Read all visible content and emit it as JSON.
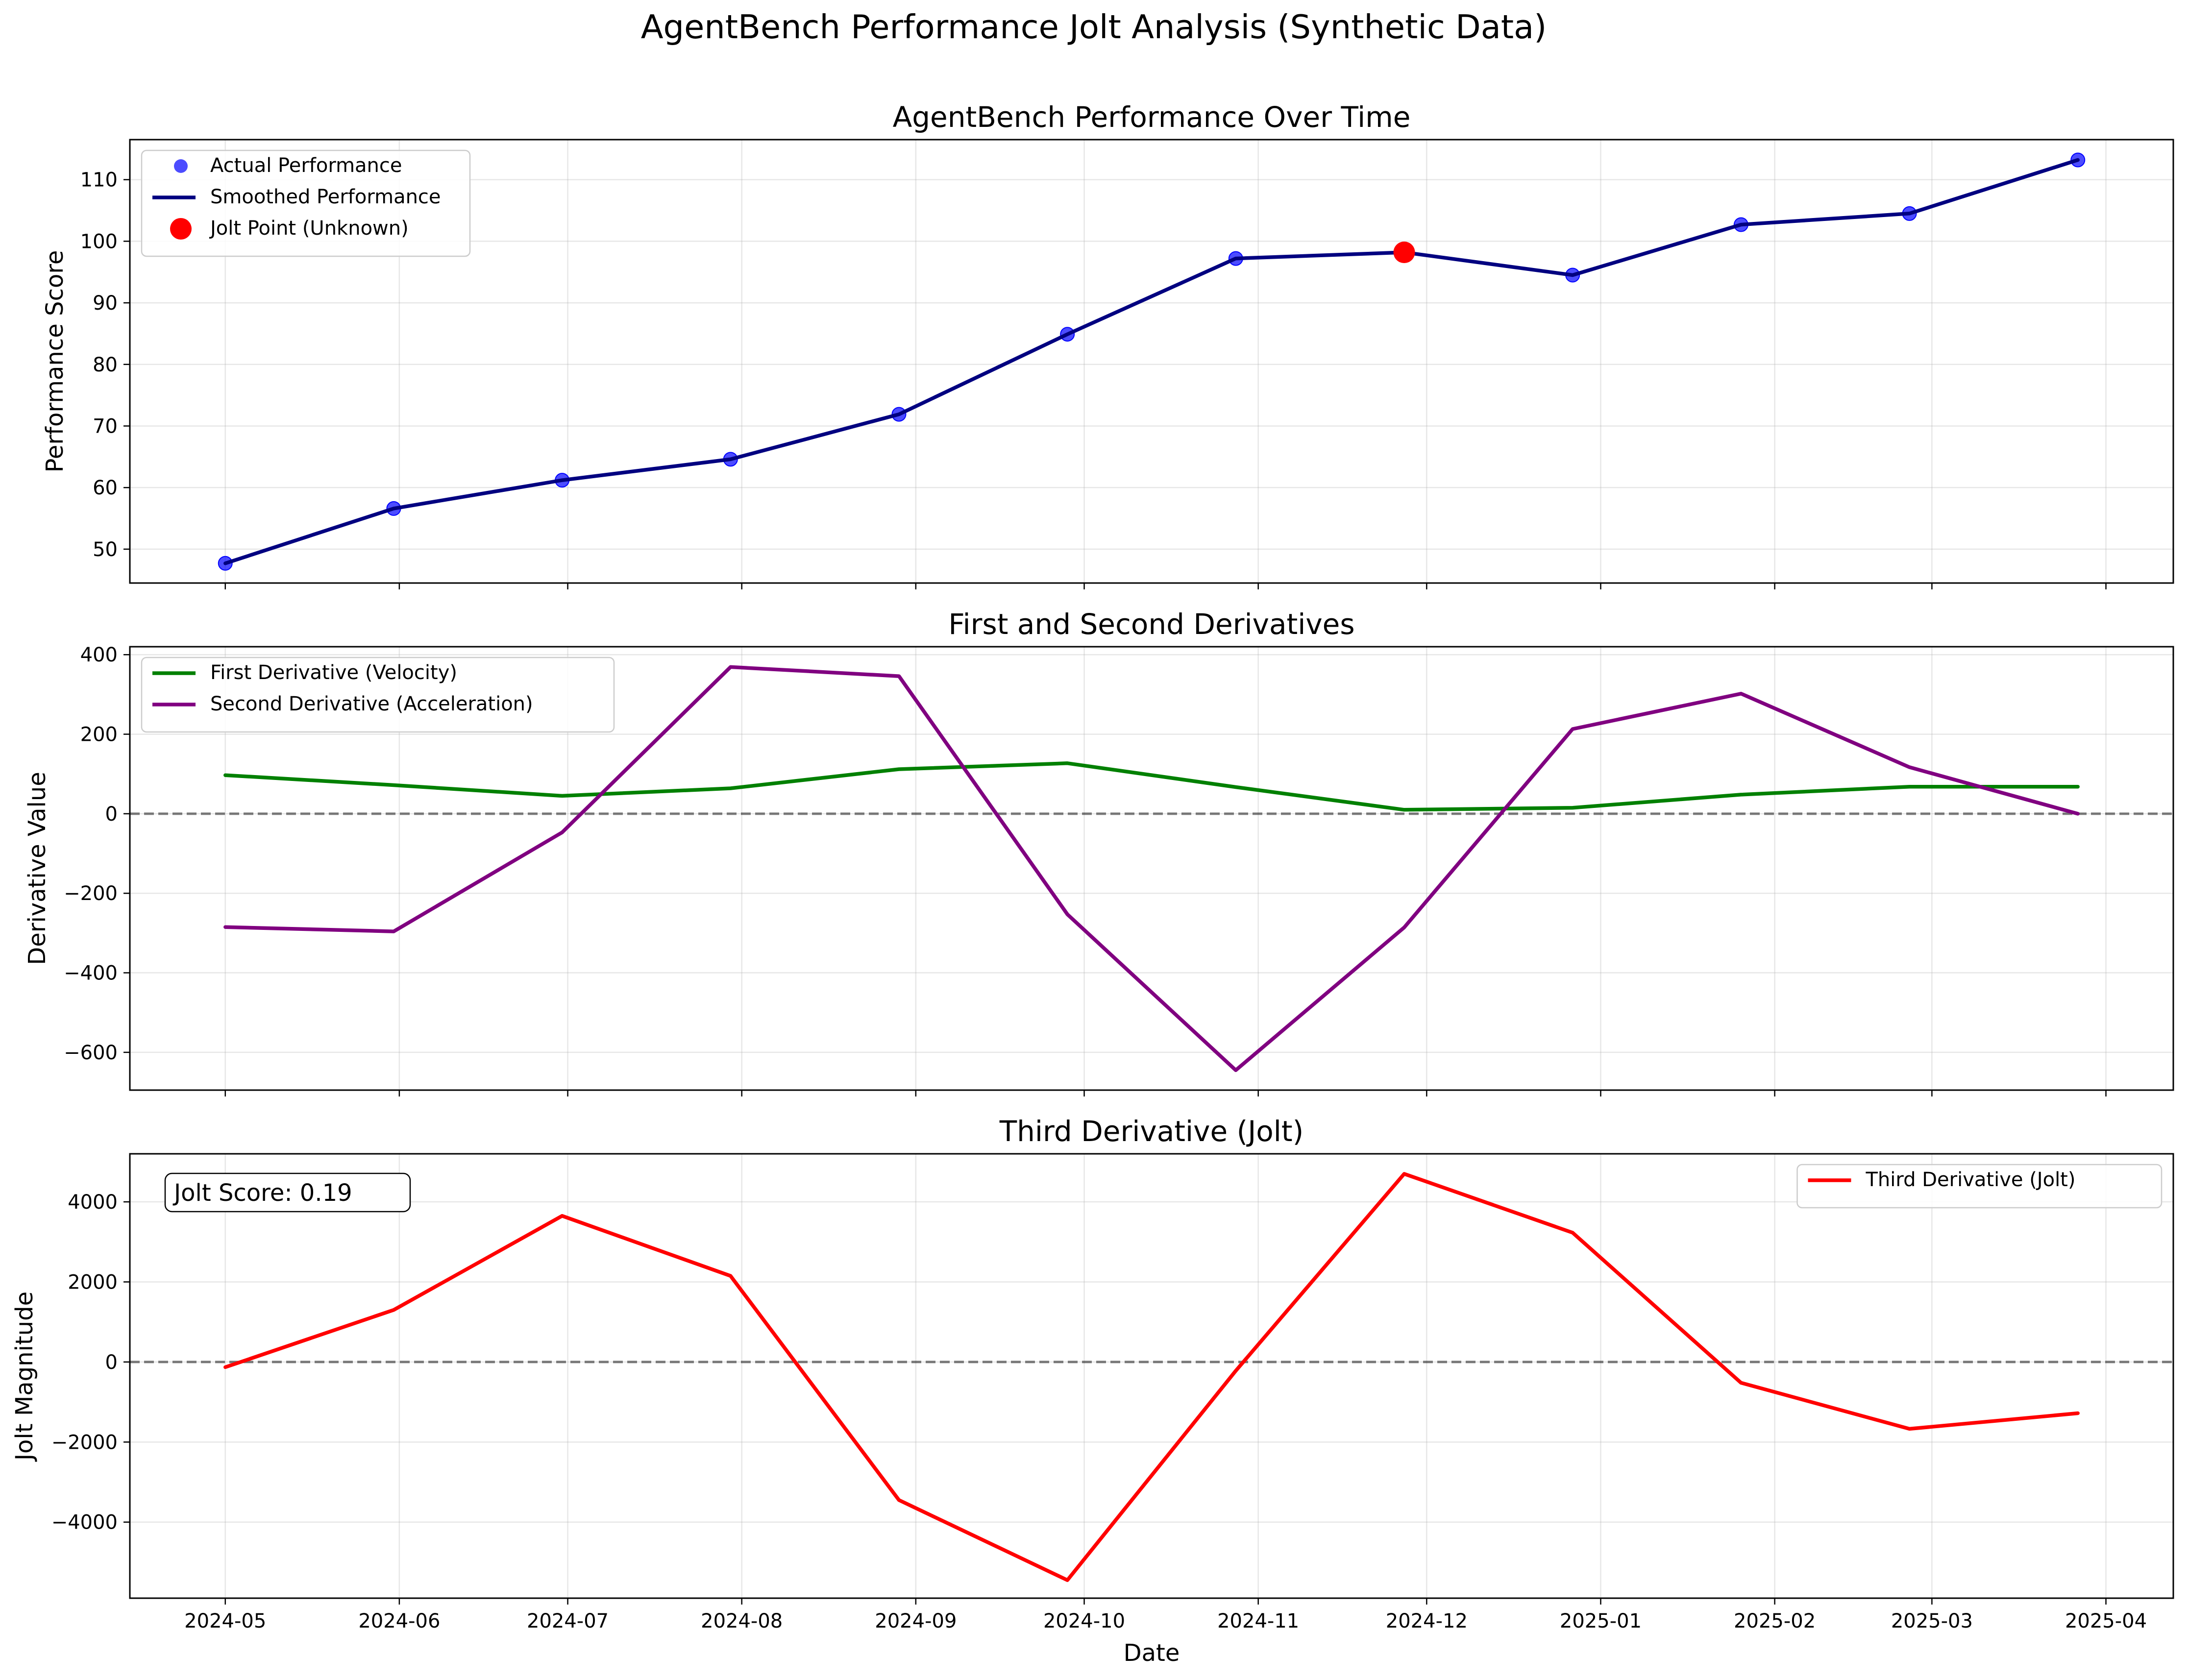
{
  "figure": {
    "suptitle": "AgentBench Performance Jolt Analysis (Synthetic Data)",
    "xlabel": "Date"
  },
  "chart_data": [
    {
      "type": "line",
      "title": "AgentBench Performance Over Time",
      "xlabel": "",
      "ylabel": "Performance Score",
      "x": [
        "2024-05-01",
        "2024-05-31",
        "2024-06-30",
        "2024-07-30",
        "2024-08-29",
        "2024-09-28",
        "2024-10-28",
        "2024-11-27",
        "2024-12-27",
        "2025-01-26",
        "2025-02-25",
        "2025-03-27"
      ],
      "ylim": [
        44.5,
        116.5
      ],
      "yticks": [
        50,
        60,
        70,
        80,
        90,
        100,
        110
      ],
      "grid": true,
      "legend": "upper left",
      "series": [
        {
          "name": "Actual Performance",
          "style": "scatter",
          "color": "#0000ff",
          "values": [
            47.7,
            56.6,
            61.2,
            64.6,
            71.9,
            84.9,
            97.2,
            98.2,
            94.5,
            102.7,
            104.5,
            113.2
          ]
        },
        {
          "name": "Smoothed Performance",
          "style": "line",
          "color": "#000080",
          "values": [
            47.7,
            56.6,
            61.2,
            64.6,
            71.9,
            84.9,
            97.2,
            98.2,
            94.5,
            102.7,
            104.5,
            113.2
          ]
        },
        {
          "name": "Jolt Point (Unknown)",
          "style": "marker",
          "color": "#ff0000",
          "points": [
            {
              "x": "2024-11-27",
              "y": 98.2
            }
          ]
        }
      ]
    },
    {
      "type": "line",
      "title": "First and Second Derivatives",
      "xlabel": "",
      "ylabel": "Derivative Value",
      "x": [
        "2024-05-01",
        "2024-05-31",
        "2024-06-30",
        "2024-07-30",
        "2024-08-29",
        "2024-09-28",
        "2024-10-28",
        "2024-11-27",
        "2024-12-27",
        "2025-01-26",
        "2025-02-25",
        "2025-03-27"
      ],
      "ylim": [
        -695,
        420
      ],
      "yticks": [
        -600,
        -400,
        -200,
        0,
        200,
        400
      ],
      "zero_line": true,
      "grid": true,
      "legend": "upper left",
      "series": [
        {
          "name": "First Derivative (Velocity)",
          "color": "#008000",
          "values": [
            97,
            72,
            45,
            64,
            112,
            127,
            67,
            10,
            15,
            48,
            68,
            68
          ]
        },
        {
          "name": "Second Derivative (Acceleration)",
          "color": "#800080",
          "values": [
            -285,
            -296,
            -47,
            369,
            346,
            -253,
            -645,
            -286,
            213,
            302,
            117,
            0
          ]
        }
      ]
    },
    {
      "type": "line",
      "title": "Third Derivative (Jolt)",
      "xlabel": "Date",
      "ylabel": "Jolt Magnitude",
      "x": [
        "2024-05-01",
        "2024-05-31",
        "2024-06-30",
        "2024-07-30",
        "2024-08-29",
        "2024-09-28",
        "2024-10-28",
        "2024-11-27",
        "2024-12-27",
        "2025-01-26",
        "2025-02-25",
        "2025-03-27"
      ],
      "ylim": [
        -5900,
        5200
      ],
      "yticks": [
        -4000,
        -2000,
        0,
        2000,
        4000
      ],
      "zero_line": true,
      "grid": true,
      "legend": "upper right",
      "annotation": "Jolt Score: 0.19",
      "series": [
        {
          "name": "Third Derivative (Jolt)",
          "color": "#ff0000",
          "values": [
            -130,
            1300,
            3650,
            2150,
            -3450,
            -5450,
            -220,
            4700,
            3230,
            -520,
            -1670,
            -1280
          ]
        }
      ]
    }
  ],
  "xaxis": {
    "ticks": [
      "2024-05-01",
      "2024-06-01",
      "2024-07-01",
      "2024-08-01",
      "2024-09-01",
      "2024-10-01",
      "2024-11-01",
      "2024-12-01",
      "2025-01-01",
      "2025-02-01",
      "2025-03-01",
      "2025-04-01"
    ],
    "tick_labels": [
      "2024-05",
      "2024-06",
      "2024-07",
      "2024-08",
      "2024-09",
      "2024-10",
      "2024-11",
      "2024-12",
      "2025-01",
      "2025-02",
      "2025-03",
      "2025-04"
    ],
    "range": [
      "2024-04-14",
      "2025-04-13"
    ]
  }
}
